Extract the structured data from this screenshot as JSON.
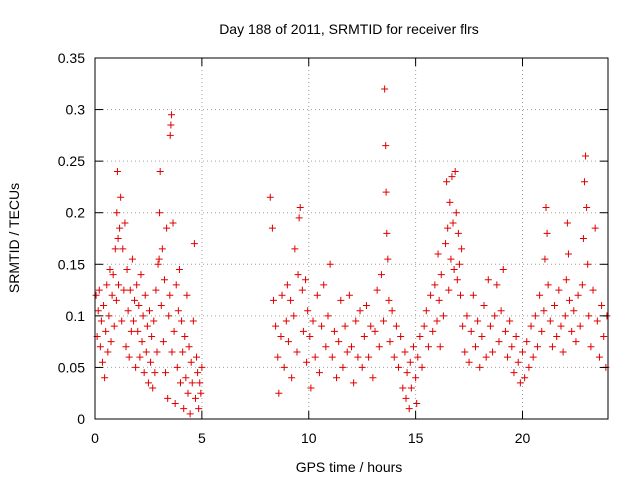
{
  "chart_data": {
    "type": "scatter",
    "title": "Day 188 of 2011, SRMTID for receiver flrs",
    "xlabel": "GPS time / hours",
    "ylabel": "SRMTID / TECUs",
    "xlim": [
      0,
      24
    ],
    "ylim": [
      0,
      0.35
    ],
    "xticks": [
      0,
      5,
      10,
      15,
      20
    ],
    "xtick_labels": [
      "0",
      "5",
      "10",
      "15",
      "20"
    ],
    "yticks": [
      0,
      0.05,
      0.1,
      0.15,
      0.2,
      0.25,
      0.3,
      0.35
    ],
    "ytick_labels": [
      "0",
      "0.05",
      "0.1",
      "0.15",
      "0.2",
      "0.25",
      "0.3",
      "0.35"
    ],
    "grid": true,
    "marker": "plus",
    "color": "#e00000",
    "series": [
      {
        "name": "SRMTID",
        "points": [
          [
            0.05,
            0.12
          ],
          [
            0.1,
            0.08
          ],
          [
            0.15,
            0.105
          ],
          [
            0.2,
            0.125
          ],
          [
            0.25,
            0.07
          ],
          [
            0.3,
            0.095
          ],
          [
            0.35,
            0.055
          ],
          [
            0.4,
            0.11
          ],
          [
            0.45,
            0.04
          ],
          [
            0.5,
            0.085
          ],
          [
            0.55,
            0.13
          ],
          [
            0.6,
            0.065
          ],
          [
            0.65,
            0.1
          ],
          [
            0.7,
            0.145
          ],
          [
            0.75,
            0.075
          ],
          [
            0.8,
            0.12
          ],
          [
            0.85,
            0.14
          ],
          [
            0.9,
            0.09
          ],
          [
            0.95,
            0.165
          ],
          [
            1.0,
            0.115
          ],
          [
            1.02,
            0.2
          ],
          [
            1.05,
            0.24
          ],
          [
            1.08,
            0.175
          ],
          [
            1.1,
            0.13
          ],
          [
            1.15,
            0.185
          ],
          [
            1.2,
            0.215
          ],
          [
            1.25,
            0.095
          ],
          [
            1.3,
            0.165
          ],
          [
            1.35,
            0.125
          ],
          [
            1.4,
            0.19
          ],
          [
            1.45,
            0.07
          ],
          [
            1.5,
            0.145
          ],
          [
            1.55,
            0.105
          ],
          [
            1.6,
            0.06
          ],
          [
            1.65,
            0.125
          ],
          [
            1.7,
            0.085
          ],
          [
            1.75,
            0.155
          ],
          [
            1.8,
            0.095
          ],
          [
            1.85,
            0.115
          ],
          [
            1.9,
            0.05
          ],
          [
            1.95,
            0.13
          ],
          [
            2.0,
            0.085
          ],
          [
            2.05,
            0.11
          ],
          [
            2.1,
            0.06
          ],
          [
            2.15,
            0.14
          ],
          [
            2.2,
            0.075
          ],
          [
            2.25,
            0.1
          ],
          [
            2.3,
            0.045
          ],
          [
            2.35,
            0.12
          ],
          [
            2.4,
            0.065
          ],
          [
            2.45,
            0.09
          ],
          [
            2.5,
            0.035
          ],
          [
            2.55,
            0.105
          ],
          [
            2.6,
            0.055
          ],
          [
            2.65,
            0.08
          ],
          [
            2.7,
            0.03
          ],
          [
            2.75,
            0.095
          ],
          [
            2.8,
            0.045
          ],
          [
            2.85,
            0.125
          ],
          [
            2.9,
            0.065
          ],
          [
            2.95,
            0.15
          ],
          [
            3.0,
            0.155
          ],
          [
            3.02,
            0.2
          ],
          [
            3.05,
            0.24
          ],
          [
            3.1,
            0.11
          ],
          [
            3.15,
            0.165
          ],
          [
            3.2,
            0.075
          ],
          [
            3.25,
            0.135
          ],
          [
            3.3,
            0.045
          ],
          [
            3.35,
            0.185
          ],
          [
            3.4,
            0.02
          ],
          [
            3.45,
            0.1
          ],
          [
            3.5,
            0.12
          ],
          [
            3.52,
            0.275
          ],
          [
            3.55,
            0.285
          ],
          [
            3.58,
            0.295
          ],
          [
            3.6,
            0.065
          ],
          [
            3.65,
            0.19
          ],
          [
            3.7,
            0.085
          ],
          [
            3.75,
            0.015
          ],
          [
            3.8,
            0.13
          ],
          [
            3.85,
            0.05
          ],
          [
            3.9,
            0.105
          ],
          [
            3.95,
            0.145
          ],
          [
            4.0,
            0.035
          ],
          [
            4.05,
            0.095
          ],
          [
            4.1,
            0.065
          ],
          [
            4.15,
            0.01
          ],
          [
            4.2,
            0.08
          ],
          [
            4.25,
            0.04
          ],
          [
            4.3,
            0.12
          ],
          [
            4.35,
            0.025
          ],
          [
            4.4,
            0.07
          ],
          [
            4.45,
            0.005
          ],
          [
            4.5,
            0.055
          ],
          [
            4.55,
            0.035
          ],
          [
            4.6,
            0.095
          ],
          [
            4.65,
            0.17
          ],
          [
            4.7,
            0.02
          ],
          [
            4.75,
            0.06
          ],
          [
            4.8,
            0.045
          ],
          [
            4.85,
            0.01
          ],
          [
            4.9,
            0.035
          ],
          [
            4.95,
            0.025
          ],
          [
            5.0,
            0.05
          ],
          [
            8.2,
            0.215
          ],
          [
            8.3,
            0.185
          ],
          [
            8.35,
            0.115
          ],
          [
            8.45,
            0.09
          ],
          [
            8.55,
            0.06
          ],
          [
            8.6,
            0.025
          ],
          [
            8.7,
            0.08
          ],
          [
            8.75,
            0.12
          ],
          [
            8.85,
            0.05
          ],
          [
            8.95,
            0.095
          ],
          [
            9.0,
            0.13
          ],
          [
            9.05,
            0.075
          ],
          [
            9.15,
            0.115
          ],
          [
            9.2,
            0.04
          ],
          [
            9.3,
            0.1
          ],
          [
            9.35,
            0.165
          ],
          [
            9.45,
            0.065
          ],
          [
            9.5,
            0.14
          ],
          [
            9.55,
            0.195
          ],
          [
            9.6,
            0.205
          ],
          [
            9.7,
            0.125
          ],
          [
            9.75,
            0.085
          ],
          [
            9.85,
            0.135
          ],
          [
            9.9,
            0.055
          ],
          [
            9.95,
            0.105
          ],
          [
            10.05,
            0.08
          ],
          [
            10.1,
            0.03
          ],
          [
            10.2,
            0.095
          ],
          [
            10.3,
            0.06
          ],
          [
            10.4,
            0.12
          ],
          [
            10.5,
            0.045
          ],
          [
            10.6,
            0.09
          ],
          [
            10.7,
            0.13
          ],
          [
            10.8,
            0.07
          ],
          [
            10.9,
            0.1
          ],
          [
            11.0,
            0.15
          ],
          [
            11.1,
            0.06
          ],
          [
            11.2,
            0.085
          ],
          [
            11.3,
            0.04
          ],
          [
            11.4,
            0.075
          ],
          [
            11.5,
            0.115
          ],
          [
            11.6,
            0.05
          ],
          [
            11.7,
            0.09
          ],
          [
            11.8,
            0.065
          ],
          [
            11.9,
            0.12
          ],
          [
            12.0,
            0.07
          ],
          [
            12.1,
            0.035
          ],
          [
            12.2,
            0.095
          ],
          [
            12.3,
            0.06
          ],
          [
            12.4,
            0.105
          ],
          [
            12.5,
            0.05
          ],
          [
            12.6,
            0.08
          ],
          [
            12.7,
            0.11
          ],
          [
            12.8,
            0.06
          ],
          [
            12.9,
            0.09
          ],
          [
            13.0,
            0.04
          ],
          [
            13.1,
            0.085
          ],
          [
            13.2,
            0.125
          ],
          [
            13.3,
            0.07
          ],
          [
            13.4,
            0.14
          ],
          [
            13.5,
            0.095
          ],
          [
            13.55,
            0.32
          ],
          [
            13.6,
            0.265
          ],
          [
            13.62,
            0.22
          ],
          [
            13.65,
            0.18
          ],
          [
            13.7,
            0.155
          ],
          [
            13.75,
            0.115
          ],
          [
            13.8,
            0.075
          ],
          [
            13.9,
            0.105
          ],
          [
            14.0,
            0.06
          ],
          [
            14.1,
            0.09
          ],
          [
            14.2,
            0.05
          ],
          [
            14.3,
            0.08
          ],
          [
            14.4,
            0.03
          ],
          [
            14.5,
            0.065
          ],
          [
            14.55,
            0.02
          ],
          [
            14.6,
            0.045
          ],
          [
            14.7,
            0.01
          ],
          [
            14.75,
            0.055
          ],
          [
            14.8,
            0.03
          ],
          [
            14.9,
            0.07
          ],
          [
            15.0,
            0.04
          ],
          [
            15.05,
            0.015
          ],
          [
            15.1,
            0.06
          ],
          [
            15.2,
            0.08
          ],
          [
            15.3,
            0.05
          ],
          [
            15.4,
            0.09
          ],
          [
            15.5,
            0.105
          ],
          [
            15.6,
            0.07
          ],
          [
            15.7,
            0.12
          ],
          [
            15.8,
            0.085
          ],
          [
            15.9,
            0.13
          ],
          [
            16.0,
            0.095
          ],
          [
            16.05,
            0.16
          ],
          [
            16.1,
            0.115
          ],
          [
            16.15,
            0.07
          ],
          [
            16.2,
            0.14
          ],
          [
            16.3,
            0.1
          ],
          [
            16.4,
            0.17
          ],
          [
            16.45,
            0.23
          ],
          [
            16.5,
            0.185
          ],
          [
            16.55,
            0.125
          ],
          [
            16.6,
            0.21
          ],
          [
            16.65,
            0.155
          ],
          [
            16.7,
            0.235
          ],
          [
            16.75,
            0.19
          ],
          [
            16.8,
            0.145
          ],
          [
            16.85,
            0.24
          ],
          [
            16.9,
            0.2
          ],
          [
            16.95,
            0.135
          ],
          [
            17.0,
            0.18
          ],
          [
            17.05,
            0.15
          ],
          [
            17.1,
            0.12
          ],
          [
            17.15,
            0.165
          ],
          [
            17.2,
            0.09
          ],
          [
            17.3,
            0.065
          ],
          [
            17.4,
            0.1
          ],
          [
            17.5,
            0.055
          ],
          [
            17.6,
            0.085
          ],
          [
            17.7,
            0.12
          ],
          [
            17.8,
            0.07
          ],
          [
            17.9,
            0.095
          ],
          [
            18.0,
            0.05
          ],
          [
            18.1,
            0.08
          ],
          [
            18.2,
            0.11
          ],
          [
            18.3,
            0.06
          ],
          [
            18.4,
            0.135
          ],
          [
            18.5,
            0.09
          ],
          [
            18.6,
            0.065
          ],
          [
            18.7,
            0.1
          ],
          [
            18.8,
            0.13
          ],
          [
            18.9,
            0.075
          ],
          [
            19.0,
            0.105
          ],
          [
            19.1,
            0.145
          ],
          [
            19.2,
            0.085
          ],
          [
            19.3,
            0.06
          ],
          [
            19.4,
            0.095
          ],
          [
            19.5,
            0.07
          ],
          [
            19.6,
            0.045
          ],
          [
            19.7,
            0.08
          ],
          [
            19.8,
            0.055
          ],
          [
            19.9,
            0.035
          ],
          [
            20.0,
            0.065
          ],
          [
            20.1,
            0.04
          ],
          [
            20.2,
            0.075
          ],
          [
            20.3,
            0.05
          ],
          [
            20.4,
            0.09
          ],
          [
            20.5,
            0.06
          ],
          [
            20.6,
            0.1
          ],
          [
            20.7,
            0.07
          ],
          [
            20.8,
            0.12
          ],
          [
            20.9,
            0.085
          ],
          [
            21.0,
            0.105
          ],
          [
            21.05,
            0.155
          ],
          [
            21.1,
            0.205
          ],
          [
            21.15,
            0.18
          ],
          [
            21.2,
            0.13
          ],
          [
            21.3,
            0.095
          ],
          [
            21.4,
            0.07
          ],
          [
            21.5,
            0.11
          ],
          [
            21.6,
            0.08
          ],
          [
            21.7,
            0.125
          ],
          [
            21.8,
            0.09
          ],
          [
            21.9,
            0.065
          ],
          [
            22.0,
            0.1
          ],
          [
            22.05,
            0.135
          ],
          [
            22.1,
            0.19
          ],
          [
            22.15,
            0.16
          ],
          [
            22.2,
            0.115
          ],
          [
            22.3,
            0.085
          ],
          [
            22.4,
            0.105
          ],
          [
            22.5,
            0.075
          ],
          [
            22.6,
            0.12
          ],
          [
            22.7,
            0.09
          ],
          [
            22.8,
            0.13
          ],
          [
            22.85,
            0.175
          ],
          [
            22.9,
            0.23
          ],
          [
            22.95,
            0.255
          ],
          [
            23.0,
            0.205
          ],
          [
            23.05,
            0.15
          ],
          [
            23.1,
            0.1
          ],
          [
            23.2,
            0.07
          ],
          [
            23.3,
            0.125
          ],
          [
            23.4,
            0.185
          ],
          [
            23.5,
            0.095
          ],
          [
            23.6,
            0.06
          ],
          [
            23.7,
            0.11
          ],
          [
            23.8,
            0.08
          ],
          [
            23.9,
            0.05
          ],
          [
            23.95,
            0.1
          ]
        ]
      }
    ]
  }
}
